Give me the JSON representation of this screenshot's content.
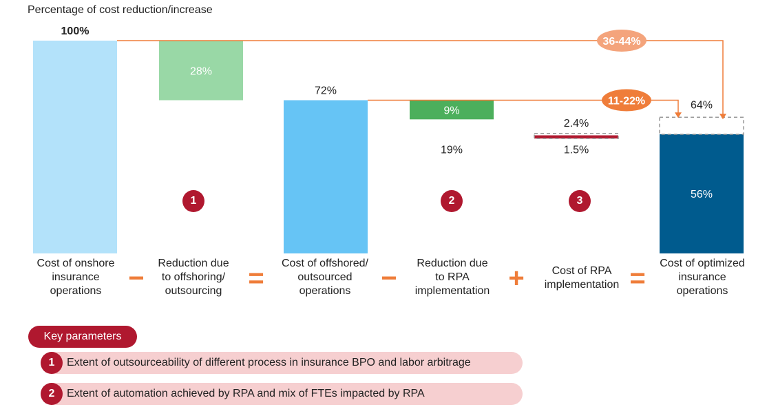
{
  "subtitle": "Percentage of cost reduction/increase",
  "operators": [
    "−",
    "=",
    "−",
    "+",
    "="
  ],
  "categories": [
    {
      "lines": [
        "Cost of onshore",
        "insurance",
        "operations"
      ]
    },
    {
      "lines": [
        "Reduction due",
        "to offshoring/",
        "outsourcing"
      ]
    },
    {
      "lines": [
        "Cost of offshored/",
        "outsourced",
        "operations"
      ]
    },
    {
      "lines": [
        "Reduction due",
        "to RPA",
        "implementation"
      ]
    },
    {
      "lines": [
        "Cost of RPA",
        "implementation"
      ]
    },
    {
      "lines": [
        "Cost of optimized",
        "insurance",
        "operations"
      ]
    }
  ],
  "badges": [
    "1",
    "2",
    "3"
  ],
  "key_parameters": {
    "header": "Key parameters",
    "items": [
      {
        "num": "1",
        "text": "Extent of outsourceability of different process in insurance BPO and labor arbitrage"
      },
      {
        "num": "2",
        "text": "Extent of automation achieved by RPA and mix of FTEs impacted by RPA"
      }
    ]
  },
  "colors": {
    "onshore": "#b3e2fa",
    "offshoring_reduction": "#99d8a6",
    "offshored": "#66c4f5",
    "rpa_reduction": "#4caf5c",
    "rpa_cost": "#b0182f",
    "optimized": "#005b8e",
    "connector": "#ef7d3a",
    "accent_red": "#b0182f"
  },
  "chart_data": {
    "type": "bar",
    "subtitle": "Percentage of cost reduction/increase",
    "categories": [
      "Cost of onshore insurance operations",
      "Reduction due to offshoring/ outsourcing",
      "Cost of offshored/ outsourced operations",
      "Reduction due to RPA implementation",
      "Cost of RPA implementation",
      "Cost of optimized insurance operations"
    ],
    "ylim": [
      0,
      100
    ],
    "bars": [
      {
        "label": "100%",
        "base": 0,
        "top": 100,
        "color": "#b3e2fa",
        "label_pos": "above",
        "bold": true
      },
      {
        "label": "28%",
        "base": 72,
        "top": 100,
        "color": "#99d8a6",
        "label_pos": "inside"
      },
      {
        "label": "72%",
        "base": 0,
        "top": 72,
        "color": "#66c4f5",
        "label_pos": "above"
      },
      {
        "label": "9%",
        "base": 63,
        "top": 72,
        "color": "#4caf5c",
        "label_pos": "inside"
      },
      {
        "label": "",
        "base": 54,
        "top": 55.5,
        "color": "#b0182f",
        "label_pos": "none"
      },
      {
        "label": "56%",
        "base": 0,
        "top": 56,
        "color": "#005b8e",
        "label_pos": "inside"
      }
    ],
    "dashed_boxes": [
      {
        "base": 54,
        "top": 56.4,
        "category": 4
      },
      {
        "base": 56,
        "top": 64,
        "category": 5
      }
    ],
    "annotations": [
      {
        "text": "19%",
        "category": 3,
        "y": 49
      },
      {
        "text": "2.4%",
        "category": 4,
        "y": 61.5
      },
      {
        "text": "1.5%",
        "category": 4,
        "y": 49
      },
      {
        "text": "64%",
        "category": 5,
        "y": 70
      }
    ],
    "callouts": [
      {
        "text": "36-44%",
        "from_category": 0,
        "to_category": 5,
        "y": 100,
        "target_top": 64
      },
      {
        "text": "11-22%",
        "from_category": 2,
        "to_category": 5,
        "y": 72,
        "target_top": 64
      }
    ]
  }
}
